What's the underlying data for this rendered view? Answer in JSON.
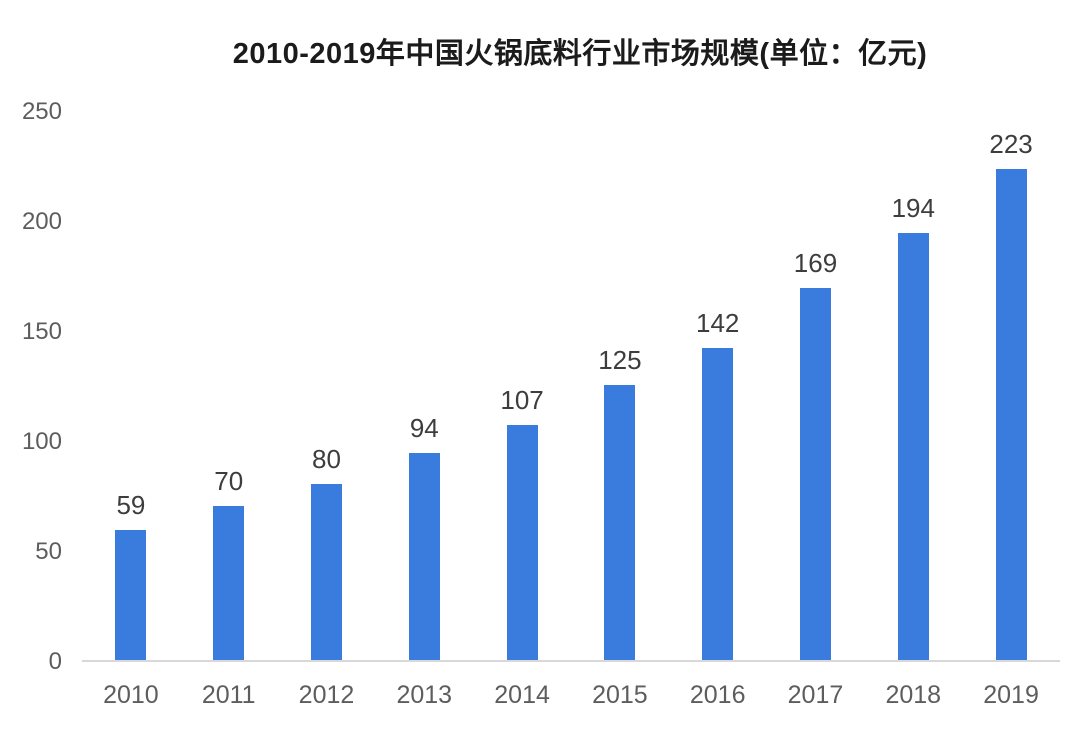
{
  "chart_data": {
    "type": "bar",
    "title": "2010-2019年中国火锅底料行业市场规模(单位：亿元)",
    "categories": [
      "2010",
      "2011",
      "2012",
      "2013",
      "2014",
      "2015",
      "2016",
      "2017",
      "2018",
      "2019"
    ],
    "values": [
      59,
      70,
      80,
      94,
      107,
      125,
      142,
      169,
      194,
      223
    ],
    "xlabel": "",
    "ylabel": "",
    "ylim": [
      0,
      250
    ],
    "yticks": [
      0,
      50,
      100,
      150,
      200,
      250
    ],
    "grid": false,
    "legend": "none",
    "data_labels": true,
    "bar_color": "#3a7cdd",
    "axis_line_color": "#d8d8d8",
    "tick_label_color": "#5d5d5d",
    "value_label_color": "#3d3d3d",
    "title_color": "#1b1b1b",
    "background_color": "#ffffff"
  }
}
